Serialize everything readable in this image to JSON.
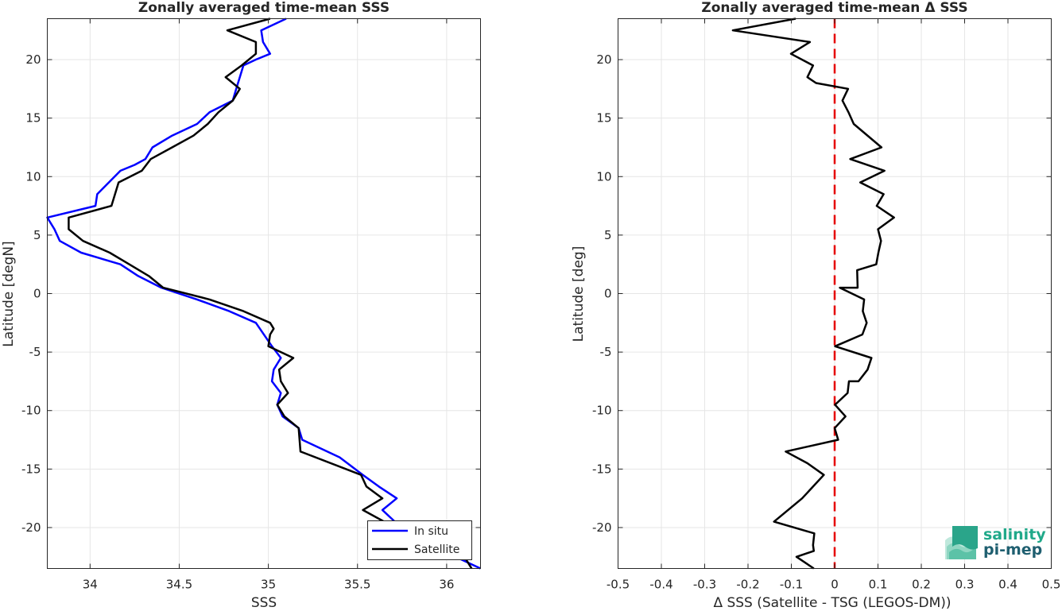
{
  "chart_data": [
    {
      "type": "line",
      "title": "Zonally averaged time-mean SSS",
      "xlabel": "SSS",
      "ylabel": "Latitude [degN]",
      "xlim": [
        33.76,
        36.19
      ],
      "ylim": [
        -23.5,
        23.5
      ],
      "xticks": [
        "34",
        "34.5",
        "35",
        "35.5",
        "36"
      ],
      "yticks": [
        "20",
        "15",
        "10",
        "5",
        "0",
        "-5",
        "-10",
        "-15",
        "-20"
      ],
      "grid": true,
      "legend_position": "bottom-right",
      "series": [
        {
          "name": "In situ",
          "color": "#0000ff",
          "points": [
            [
              35.1,
              23.5
            ],
            [
              34.96,
              22.5
            ],
            [
              34.97,
              21.5
            ],
            [
              35.01,
              20.5
            ],
            [
              34.93,
              20.0
            ],
            [
              34.86,
              19.5
            ],
            [
              34.84,
              18.5
            ],
            [
              34.82,
              17.5
            ],
            [
              34.8,
              16.5
            ],
            [
              34.67,
              15.5
            ],
            [
              34.6,
              14.5
            ],
            [
              34.46,
              13.5
            ],
            [
              34.35,
              12.5
            ],
            [
              34.31,
              11.5
            ],
            [
              34.25,
              11.0
            ],
            [
              34.17,
              10.5
            ],
            [
              34.04,
              8.5
            ],
            [
              34.03,
              7.5
            ],
            [
              33.76,
              6.5
            ],
            [
              33.8,
              5.5
            ],
            [
              33.83,
              4.5
            ],
            [
              33.95,
              3.5
            ],
            [
              34.17,
              2.5
            ],
            [
              34.27,
              1.5
            ],
            [
              34.4,
              0.5
            ],
            [
              34.6,
              -0.5
            ],
            [
              34.78,
              -1.5
            ],
            [
              34.93,
              -2.5
            ],
            [
              35.02,
              -4.5
            ],
            [
              35.07,
              -5.5
            ],
            [
              35.03,
              -6.5
            ],
            [
              35.02,
              -7.5
            ],
            [
              35.07,
              -8.5
            ],
            [
              35.05,
              -9.5
            ],
            [
              35.08,
              -10.5
            ],
            [
              35.17,
              -11.5
            ],
            [
              35.19,
              -12.5
            ],
            [
              35.4,
              -14.0
            ],
            [
              35.53,
              -15.5
            ],
            [
              35.62,
              -16.5
            ],
            [
              35.72,
              -17.5
            ],
            [
              35.64,
              -18.5
            ],
            [
              35.71,
              -19.5
            ],
            [
              35.72,
              -20.5
            ],
            [
              35.91,
              -21.5
            ],
            [
              36.19,
              -23.5
            ]
          ]
        },
        {
          "name": "Satellite",
          "color": "#000000",
          "points": [
            [
              35.01,
              23.5
            ],
            [
              34.77,
              22.5
            ],
            [
              34.93,
              21.5
            ],
            [
              34.93,
              20.5
            ],
            [
              34.85,
              19.5
            ],
            [
              34.76,
              18.5
            ],
            [
              34.84,
              17.5
            ],
            [
              34.8,
              16.5
            ],
            [
              34.72,
              15.5
            ],
            [
              34.66,
              14.5
            ],
            [
              34.58,
              13.5
            ],
            [
              34.46,
              12.5
            ],
            [
              34.34,
              11.5
            ],
            [
              34.29,
              10.5
            ],
            [
              34.16,
              9.5
            ],
            [
              34.12,
              7.5
            ],
            [
              33.88,
              6.5
            ],
            [
              33.88,
              5.5
            ],
            [
              33.96,
              4.5
            ],
            [
              34.11,
              3.5
            ],
            [
              34.22,
              2.5
            ],
            [
              34.33,
              1.5
            ],
            [
              34.41,
              0.5
            ],
            [
              34.67,
              -0.5
            ],
            [
              34.86,
              -1.5
            ],
            [
              35.01,
              -2.5
            ],
            [
              35.03,
              -3.0
            ],
            [
              35.01,
              -3.5
            ],
            [
              35.0,
              -4.5
            ],
            [
              35.14,
              -5.5
            ],
            [
              35.06,
              -6.5
            ],
            [
              35.07,
              -7.5
            ],
            [
              35.11,
              -8.5
            ],
            [
              35.05,
              -9.5
            ],
            [
              35.09,
              -10.5
            ],
            [
              35.17,
              -11.5
            ],
            [
              35.18,
              -13.5
            ],
            [
              35.52,
              -15.5
            ],
            [
              35.55,
              -16.5
            ],
            [
              35.64,
              -17.5
            ],
            [
              35.53,
              -18.5
            ],
            [
              35.65,
              -19.5
            ],
            [
              35.63,
              -20.5
            ],
            [
              35.96,
              -21.5
            ],
            [
              36.1,
              -22.5
            ],
            [
              36.14,
              -23.5
            ]
          ]
        }
      ]
    },
    {
      "type": "line",
      "title": "Zonally averaged time-mean Δ SSS",
      "xlabel": "Δ SSS (Satellite - TSG (LEGOS-DM))",
      "ylabel": "Latitude [deg]",
      "xlim": [
        -0.5,
        0.5
      ],
      "ylim": [
        -23.5,
        23.5
      ],
      "xticks": [
        "-0.5",
        "-0.4",
        "-0.3",
        "-0.2",
        "-0.1",
        "0",
        "0.1",
        "0.2",
        "0.3",
        "0.4",
        "0.5"
      ],
      "yticks": [
        "20",
        "15",
        "10",
        "5",
        "0",
        "-5",
        "-10",
        "-15",
        "-20"
      ],
      "grid": true,
      "reference_line": {
        "x": 0,
        "color": "#e60000",
        "style": "dashed"
      },
      "series": [
        {
          "color": "#000000",
          "points": [
            [
              -0.09,
              23.5
            ],
            [
              -0.235,
              22.5
            ],
            [
              -0.057,
              21.5
            ],
            [
              -0.101,
              20.5
            ],
            [
              -0.05,
              19.5
            ],
            [
              -0.063,
              18.5
            ],
            [
              -0.043,
              18.0
            ],
            [
              0.031,
              17.5
            ],
            [
              0.018,
              16.5
            ],
            [
              0.032,
              15.5
            ],
            [
              0.044,
              14.5
            ],
            [
              0.108,
              12.5
            ],
            [
              0.036,
              11.5
            ],
            [
              0.115,
              10.5
            ],
            [
              0.059,
              9.5
            ],
            [
              0.113,
              8.5
            ],
            [
              0.097,
              7.5
            ],
            [
              0.137,
              6.5
            ],
            [
              0.1,
              5.5
            ],
            [
              0.107,
              4.5
            ],
            [
              0.101,
              3.5
            ],
            [
              0.096,
              2.5
            ],
            [
              0.052,
              2.0
            ],
            [
              0.053,
              0.5
            ],
            [
              0.012,
              0.5
            ],
            [
              0.068,
              -0.5
            ],
            [
              0.065,
              -1.5
            ],
            [
              0.074,
              -2.5
            ],
            [
              0.064,
              -3.5
            ],
            [
              0.001,
              -4.5
            ],
            [
              0.085,
              -5.5
            ],
            [
              0.076,
              -6.5
            ],
            [
              0.055,
              -7.5
            ],
            [
              0.033,
              -7.5
            ],
            [
              0.03,
              -8.5
            ],
            [
              0.001,
              -9.5
            ],
            [
              0.025,
              -10.5
            ],
            [
              0.0,
              -11.5
            ],
            [
              0.008,
              -12.5
            ],
            [
              -0.113,
              -13.5
            ],
            [
              -0.063,
              -14.5
            ],
            [
              -0.025,
              -15.5
            ],
            [
              -0.05,
              -16.5
            ],
            [
              -0.075,
              -17.5
            ],
            [
              -0.14,
              -19.5
            ],
            [
              -0.047,
              -20.5
            ],
            [
              -0.05,
              -21.5
            ],
            [
              -0.048,
              -22.0
            ],
            [
              -0.088,
              -22.5
            ],
            [
              -0.048,
              -23.5
            ]
          ]
        }
      ]
    }
  ],
  "logo": {
    "line1": "salinity",
    "line2": "pi-mep"
  }
}
